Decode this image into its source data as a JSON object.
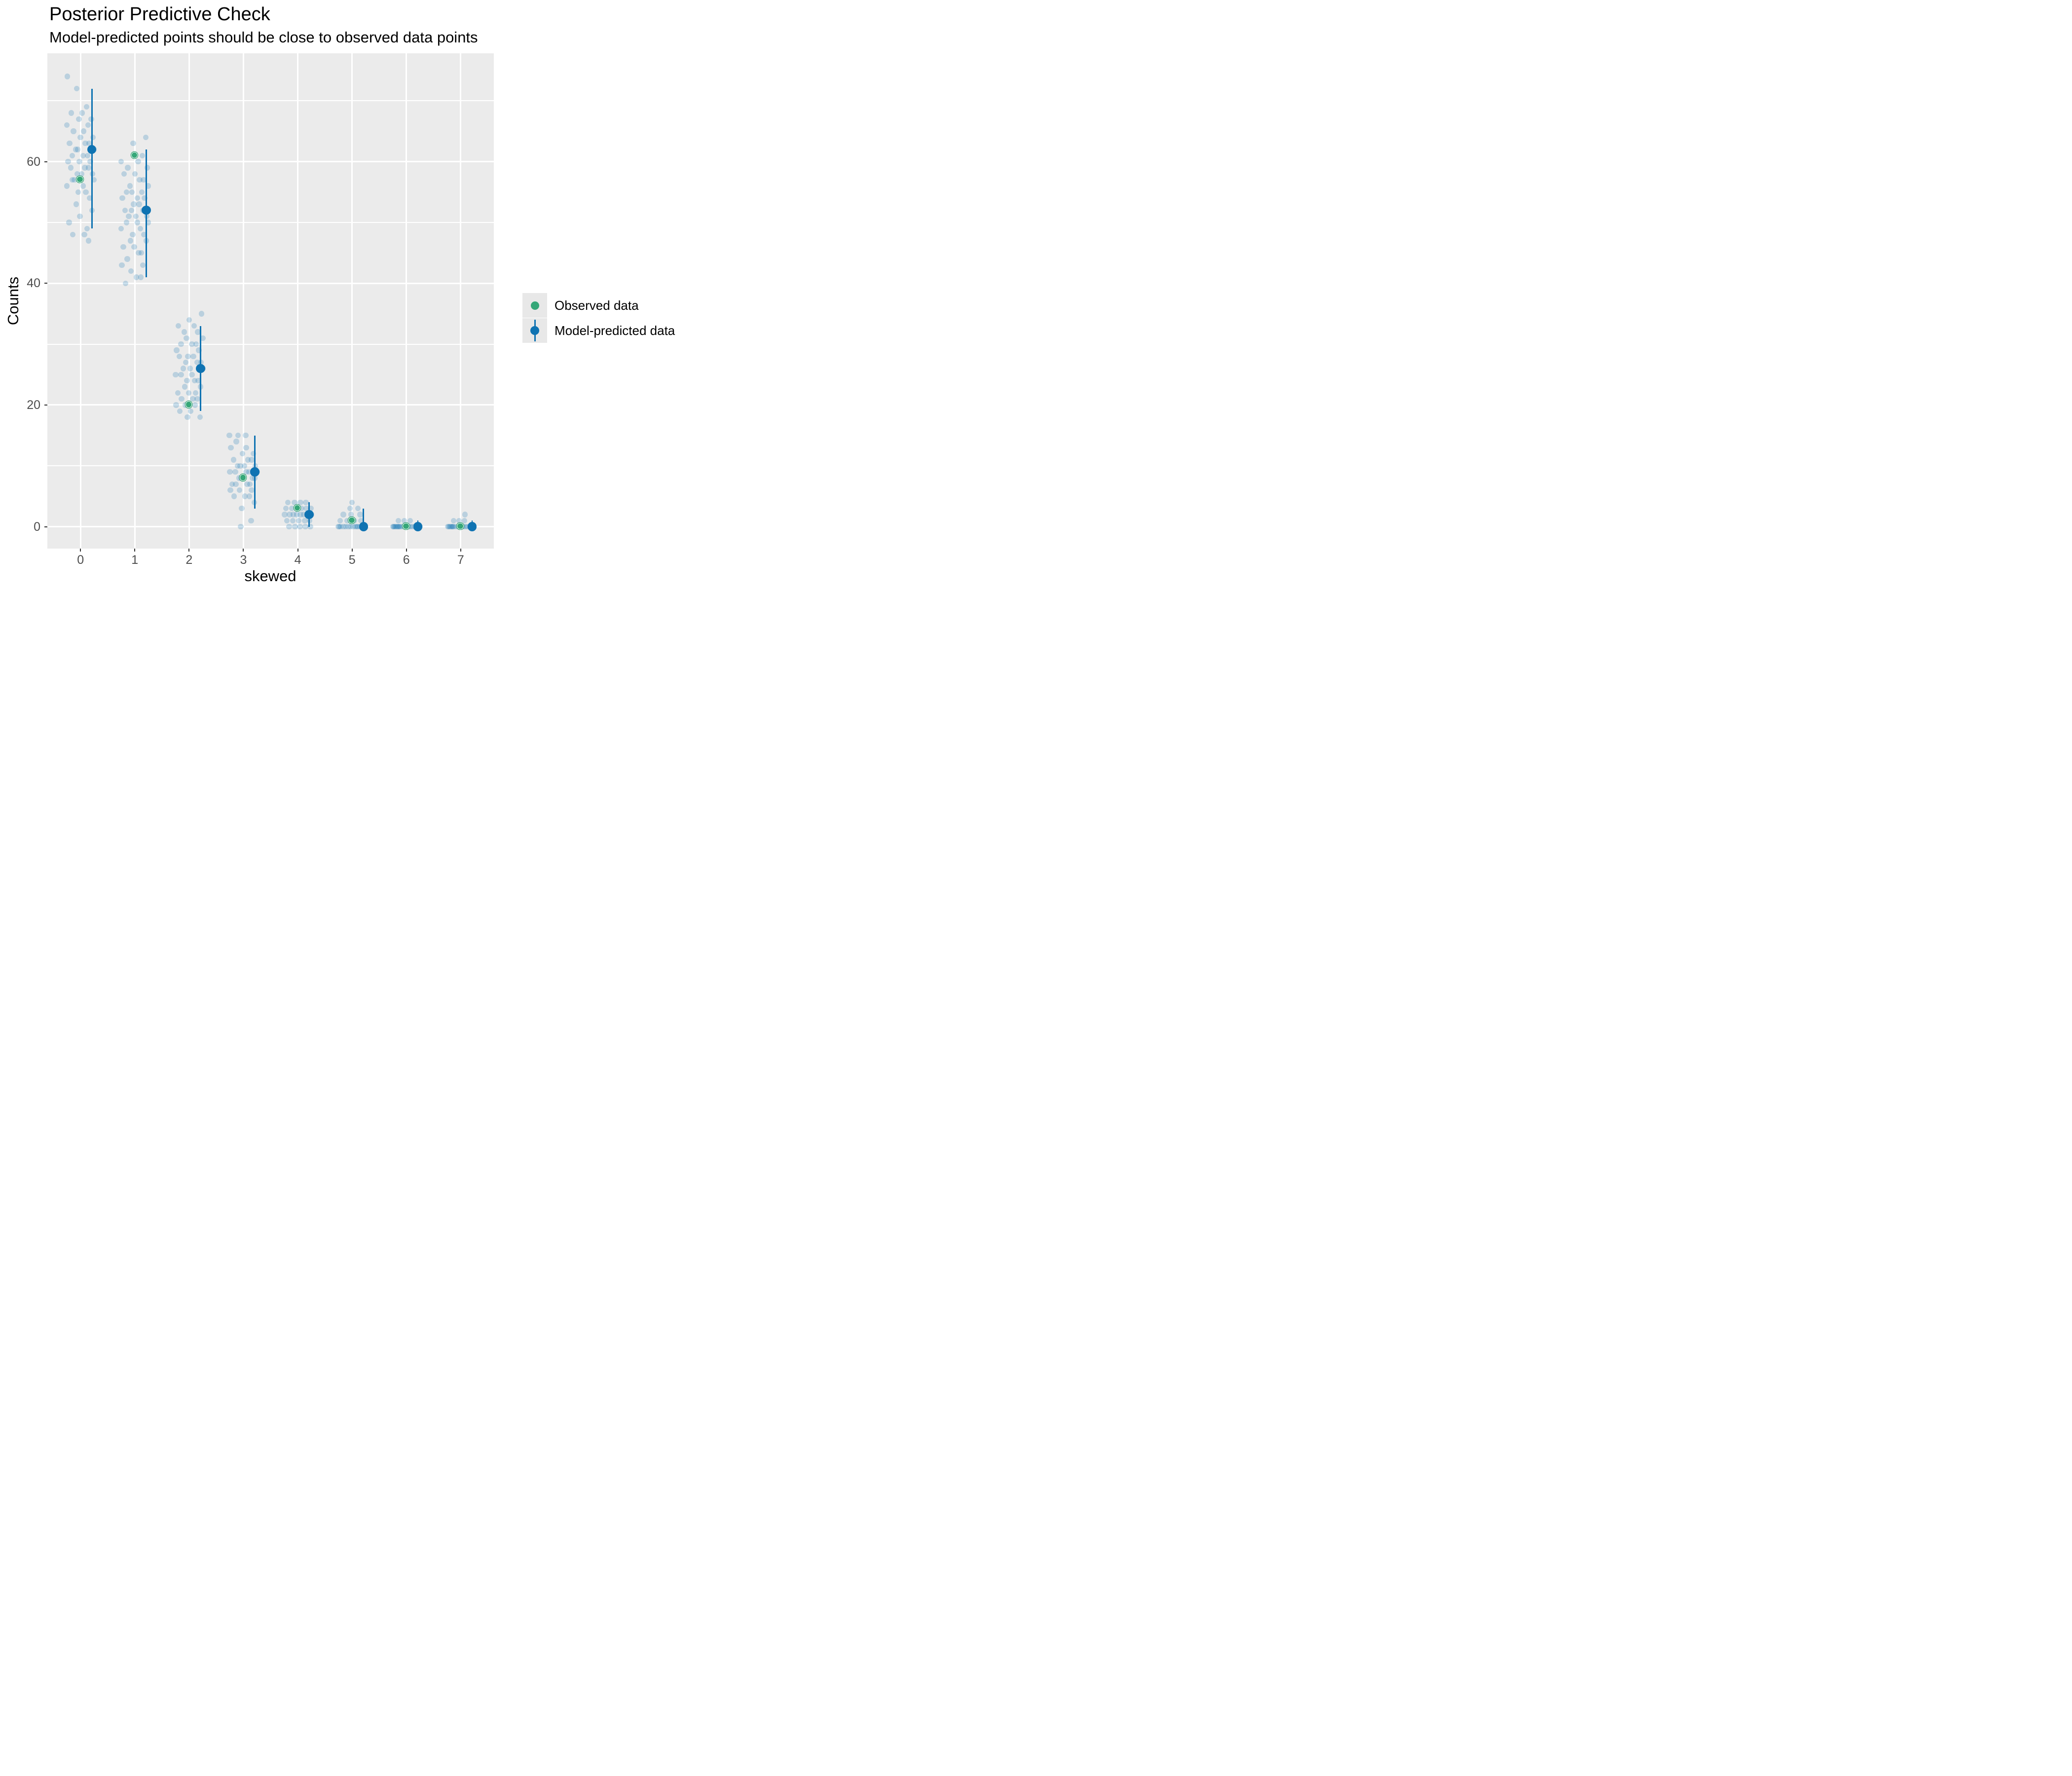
{
  "header": {
    "title": "Posterior Predictive Check",
    "subtitle": "Model-predicted points should be close to observed data points"
  },
  "chart_data": {
    "type": "scatter",
    "title": "Posterior Predictive Check",
    "subtitle": "Model-predicted points should be close to observed data points",
    "xlabel": "skewed",
    "ylabel": "Counts",
    "categories": [
      "0",
      "1",
      "2",
      "3",
      "4",
      "5",
      "6",
      "7"
    ],
    "xlim": [
      -0.61,
      7.61
    ],
    "ylim": [
      -3.6,
      77.8
    ],
    "y_major_ticks": [
      0,
      20,
      40,
      60
    ],
    "y_minor_gridlines": [
      10,
      30,
      50,
      70
    ],
    "grid": "on",
    "legend_position": "right",
    "observed": {
      "label": "Observed data",
      "color": "#35a778",
      "values": [
        57,
        61,
        20,
        8,
        3,
        1,
        0,
        0
      ]
    },
    "predicted": {
      "label": "Model-predicted data",
      "color": "#0f73b2",
      "x_offset": 0.21,
      "median": [
        62,
        52,
        26,
        9,
        2,
        0,
        0,
        0
      ],
      "lower": [
        49,
        41,
        19,
        3,
        0,
        0,
        0,
        0
      ],
      "upper": [
        72,
        62,
        33,
        15,
        4,
        3,
        1,
        1
      ]
    },
    "draws": {
      "label": "posterior draw counts",
      "color": "rgba(15,115,178,0.22)",
      "points_by_category": [
        [
          [
            -0.24,
            74
          ],
          [
            -0.07,
            72
          ],
          [
            0.11,
            69
          ],
          [
            0.03,
            68
          ],
          [
            -0.17,
            68
          ],
          [
            0.2,
            67
          ],
          [
            -0.03,
            67
          ],
          [
            0.14,
            66
          ],
          [
            -0.25,
            66
          ],
          [
            0.06,
            65
          ],
          [
            -0.13,
            65
          ],
          [
            0.23,
            64
          ],
          [
            0.0,
            64
          ],
          [
            -0.2,
            63
          ],
          [
            0.09,
            63
          ],
          [
            0.16,
            63
          ],
          [
            -0.09,
            62
          ],
          [
            0.25,
            62
          ],
          [
            -0.05,
            62
          ],
          [
            -0.15,
            61
          ],
          [
            0.13,
            61
          ],
          [
            0.05,
            61
          ],
          [
            -0.23,
            60
          ],
          [
            0.18,
            60
          ],
          [
            -0.02,
            60
          ],
          [
            0.08,
            59
          ],
          [
            -0.18,
            59
          ],
          [
            0.15,
            59
          ],
          [
            -0.06,
            58
          ],
          [
            0.22,
            58
          ],
          [
            0.02,
            58
          ],
          [
            -0.11,
            57
          ],
          [
            0.25,
            57
          ],
          [
            -0.15,
            57
          ],
          [
            0.05,
            56
          ],
          [
            -0.25,
            56
          ],
          [
            0.1,
            55
          ],
          [
            -0.04,
            55
          ],
          [
            0.17,
            54
          ],
          [
            -0.08,
            53
          ],
          [
            0.21,
            52
          ],
          [
            -0.01,
            51
          ],
          [
            -0.21,
            50
          ],
          [
            0.12,
            49
          ],
          [
            0.07,
            48
          ],
          [
            -0.14,
            48
          ],
          [
            0.15,
            47
          ]
        ],
        [
          [
            0.2,
            64
          ],
          [
            -0.03,
            63
          ],
          [
            0.14,
            61
          ],
          [
            -0.25,
            60
          ],
          [
            0.06,
            60
          ],
          [
            -0.13,
            59
          ],
          [
            0.23,
            59
          ],
          [
            0.0,
            58
          ],
          [
            -0.2,
            58
          ],
          [
            0.09,
            57
          ],
          [
            0.16,
            57
          ],
          [
            -0.09,
            56
          ],
          [
            0.25,
            56
          ],
          [
            -0.05,
            55
          ],
          [
            -0.15,
            55
          ],
          [
            0.13,
            55
          ],
          [
            0.05,
            54
          ],
          [
            -0.23,
            54
          ],
          [
            0.18,
            54
          ],
          [
            -0.02,
            53
          ],
          [
            0.08,
            53
          ],
          [
            -0.18,
            52
          ],
          [
            0.15,
            52
          ],
          [
            -0.06,
            52
          ],
          [
            0.22,
            51
          ],
          [
            0.02,
            51
          ],
          [
            -0.11,
            51
          ],
          [
            0.25,
            50
          ],
          [
            -0.15,
            50
          ],
          [
            0.05,
            50
          ],
          [
            -0.25,
            49
          ],
          [
            0.1,
            49
          ],
          [
            -0.04,
            48
          ],
          [
            0.17,
            48
          ],
          [
            -0.08,
            47
          ],
          [
            0.21,
            47
          ],
          [
            -0.01,
            46
          ],
          [
            -0.21,
            46
          ],
          [
            0.12,
            45
          ],
          [
            0.07,
            45
          ],
          [
            -0.14,
            44
          ],
          [
            0.15,
            43
          ],
          [
            -0.24,
            43
          ],
          [
            -0.07,
            42
          ],
          [
            0.11,
            41
          ],
          [
            0.03,
            41
          ],
          [
            -0.17,
            40
          ]
        ],
        [
          [
            0.23,
            35
          ],
          [
            0.0,
            34
          ],
          [
            -0.2,
            33
          ],
          [
            0.09,
            33
          ],
          [
            0.16,
            32
          ],
          [
            -0.09,
            32
          ],
          [
            0.25,
            31
          ],
          [
            -0.05,
            31
          ],
          [
            -0.15,
            30
          ],
          [
            0.13,
            30
          ],
          [
            0.05,
            30
          ],
          [
            -0.23,
            29
          ],
          [
            0.18,
            29
          ],
          [
            -0.02,
            28
          ],
          [
            0.08,
            28
          ],
          [
            -0.18,
            28
          ],
          [
            0.15,
            27
          ],
          [
            -0.06,
            27
          ],
          [
            0.22,
            27
          ],
          [
            0.02,
            26
          ],
          [
            -0.11,
            26
          ],
          [
            0.25,
            26
          ],
          [
            -0.15,
            25
          ],
          [
            0.05,
            25
          ],
          [
            -0.25,
            25
          ],
          [
            0.1,
            24
          ],
          [
            -0.04,
            24
          ],
          [
            0.17,
            24
          ],
          [
            -0.08,
            23
          ],
          [
            0.21,
            23
          ],
          [
            -0.01,
            22
          ],
          [
            -0.21,
            22
          ],
          [
            0.12,
            22
          ],
          [
            0.07,
            21
          ],
          [
            -0.14,
            21
          ],
          [
            0.15,
            21
          ],
          [
            -0.24,
            20
          ],
          [
            -0.07,
            20
          ],
          [
            0.11,
            20
          ],
          [
            0.03,
            19
          ],
          [
            -0.17,
            19
          ],
          [
            0.2,
            18
          ],
          [
            -0.03,
            18
          ]
        ],
        [
          [
            -0.26,
            15
          ],
          [
            -0.1,
            15
          ],
          [
            0.04,
            15
          ],
          [
            -0.13,
            14
          ],
          [
            0.05,
            13
          ],
          [
            -0.23,
            13
          ],
          [
            0.18,
            12
          ],
          [
            -0.02,
            12
          ],
          [
            0.08,
            11
          ],
          [
            -0.18,
            11
          ],
          [
            0.15,
            11
          ],
          [
            -0.06,
            10
          ],
          [
            0.22,
            10
          ],
          [
            0.02,
            10
          ],
          [
            -0.11,
            10
          ],
          [
            0.25,
            9
          ],
          [
            -0.15,
            9
          ],
          [
            0.05,
            9
          ],
          [
            -0.25,
            9
          ],
          [
            0.1,
            9
          ],
          [
            -0.04,
            8
          ],
          [
            0.17,
            8
          ],
          [
            -0.08,
            8
          ],
          [
            0.21,
            8
          ],
          [
            -0.01,
            8
          ],
          [
            -0.21,
            7
          ],
          [
            0.12,
            7
          ],
          [
            0.07,
            7
          ],
          [
            -0.14,
            7
          ],
          [
            0.15,
            6
          ],
          [
            -0.24,
            6
          ],
          [
            -0.07,
            6
          ],
          [
            0.11,
            5
          ],
          [
            0.03,
            5
          ],
          [
            -0.17,
            5
          ],
          [
            0.2,
            4
          ],
          [
            -0.03,
            3
          ],
          [
            0.14,
            1
          ],
          [
            -0.05,
            0
          ]
        ],
        [
          [
            -0.18,
            4
          ],
          [
            -0.06,
            4
          ],
          [
            0.05,
            4
          ],
          [
            0.15,
            4
          ],
          [
            -0.22,
            3
          ],
          [
            -0.11,
            3
          ],
          [
            -0.02,
            3
          ],
          [
            0.07,
            3
          ],
          [
            0.16,
            3
          ],
          [
            0.24,
            3
          ],
          [
            -0.24,
            2
          ],
          [
            -0.15,
            2
          ],
          [
            -0.08,
            2
          ],
          [
            -0.02,
            2
          ],
          [
            0.05,
            2
          ],
          [
            0.11,
            2
          ],
          [
            0.18,
            2
          ],
          [
            0.25,
            2
          ],
          [
            -0.2,
            1
          ],
          [
            -0.09,
            1
          ],
          [
            0.02,
            1
          ],
          [
            0.13,
            1
          ],
          [
            0.22,
            1
          ],
          [
            -0.16,
            0
          ],
          [
            -0.05,
            0
          ],
          [
            0.04,
            0
          ],
          [
            0.14,
            0
          ],
          [
            0.23,
            0
          ]
        ],
        [
          [
            0.0,
            4
          ],
          [
            -0.04,
            3
          ],
          [
            0.11,
            3
          ],
          [
            -0.16,
            2
          ],
          [
            -0.02,
            2
          ],
          [
            0.15,
            2
          ],
          [
            -0.22,
            1
          ],
          [
            -0.09,
            1
          ],
          [
            0.04,
            1
          ],
          [
            0.16,
            1
          ],
          [
            -0.25,
            0
          ],
          [
            -0.21,
            0
          ],
          [
            -0.16,
            0
          ],
          [
            -0.12,
            0
          ],
          [
            -0.07,
            0
          ],
          [
            -0.03,
            0
          ],
          [
            0.02,
            0
          ],
          [
            0.06,
            0
          ],
          [
            0.11,
            0
          ],
          [
            0.15,
            0
          ],
          [
            0.2,
            0
          ],
          [
            0.24,
            0
          ],
          [
            -0.24,
            0
          ],
          [
            0.09,
            0
          ]
        ],
        [
          [
            -0.15,
            1
          ],
          [
            -0.04,
            1
          ],
          [
            0.07,
            1
          ],
          [
            -0.25,
            0
          ],
          [
            -0.22,
            0
          ],
          [
            -0.18,
            0
          ],
          [
            -0.15,
            0
          ],
          [
            -0.11,
            0
          ],
          [
            -0.07,
            0
          ],
          [
            -0.04,
            0
          ],
          [
            0.0,
            0
          ],
          [
            0.04,
            0
          ],
          [
            0.07,
            0
          ],
          [
            0.11,
            0
          ],
          [
            0.15,
            0
          ],
          [
            0.18,
            0
          ],
          [
            0.22,
            0
          ],
          [
            0.25,
            0
          ],
          [
            -0.24,
            0
          ],
          [
            -0.2,
            0
          ],
          [
            -0.16,
            0
          ],
          [
            -0.13,
            0
          ],
          [
            0.24,
            0
          ]
        ],
        [
          [
            0.08,
            2
          ],
          [
            -0.13,
            1
          ],
          [
            -0.03,
            1
          ],
          [
            0.07,
            1
          ],
          [
            -0.24,
            0
          ],
          [
            -0.2,
            0
          ],
          [
            -0.16,
            0
          ],
          [
            -0.13,
            0
          ],
          [
            -0.09,
            0
          ],
          [
            -0.05,
            0
          ],
          [
            -0.02,
            0
          ],
          [
            0.02,
            0
          ],
          [
            0.05,
            0
          ],
          [
            0.09,
            0
          ],
          [
            0.13,
            0
          ],
          [
            0.16,
            0
          ],
          [
            0.2,
            0
          ],
          [
            0.24,
            0
          ],
          [
            -0.22,
            0
          ],
          [
            -0.18,
            0
          ],
          [
            -0.15,
            0
          ],
          [
            0.23,
            0
          ]
        ]
      ]
    }
  },
  "colors": {
    "panel_bg": "#ebebeb",
    "gridline": "#ffffff",
    "axis_text": "#4d4d4d",
    "tick_mark": "#333333",
    "legend_key_bg": "#e8e8e8",
    "observed_green": "#35a778",
    "predicted_blue": "#0f73b2",
    "draw_point": "rgba(15,115,178,0.22)"
  }
}
